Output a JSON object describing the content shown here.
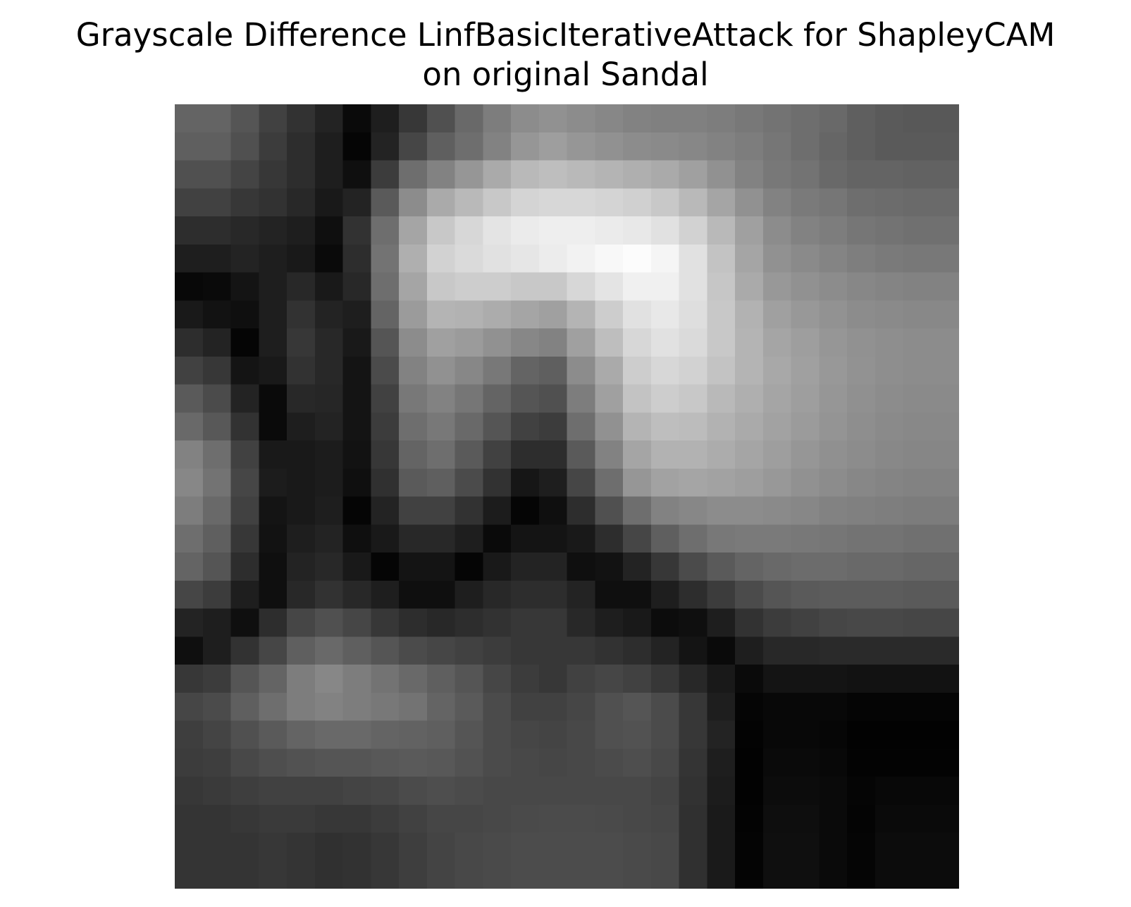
{
  "chart_data": {
    "type": "heatmap",
    "title_lines": [
      "Grayscale Difference LinfBasicIterativeAttack for ShapleyCAM",
      "on original Sandal"
    ],
    "colormap": "gray",
    "axis_visible": false,
    "grid": false,
    "rows": 28,
    "cols": 28,
    "values": [
      [
        100,
        100,
        85,
        65,
        50,
        35,
        10,
        30,
        55,
        80,
        105,
        125,
        140,
        145,
        140,
        135,
        130,
        128,
        128,
        125,
        120,
        115,
        110,
        105,
        95,
        90,
        88,
        88
      ],
      [
        95,
        95,
        80,
        60,
        45,
        30,
        5,
        35,
        70,
        95,
        110,
        130,
        150,
        158,
        150,
        145,
        140,
        138,
        135,
        130,
        125,
        118,
        110,
        102,
        95,
        90,
        90,
        90
      ],
      [
        80,
        80,
        68,
        55,
        45,
        30,
        15,
        60,
        110,
        130,
        150,
        170,
        185,
        190,
        185,
        180,
        175,
        170,
        160,
        145,
        130,
        120,
        115,
        105,
        100,
        100,
        98,
        98
      ],
      [
        65,
        65,
        55,
        50,
        40,
        25,
        35,
        90,
        140,
        170,
        185,
        200,
        212,
        215,
        215,
        212,
        208,
        200,
        185,
        165,
        145,
        130,
        122,
        118,
        110,
        108,
        106,
        106
      ],
      [
        45,
        45,
        40,
        35,
        30,
        15,
        50,
        110,
        165,
        200,
        215,
        228,
        235,
        238,
        238,
        235,
        232,
        225,
        210,
        185,
        160,
        140,
        130,
        125,
        118,
        115,
        112,
        112
      ],
      [
        30,
        30,
        35,
        30,
        25,
        10,
        45,
        115,
        175,
        210,
        218,
        225,
        230,
        236,
        242,
        248,
        252,
        245,
        225,
        195,
        165,
        145,
        138,
        132,
        126,
        122,
        120,
        120
      ],
      [
        8,
        10,
        20,
        30,
        40,
        25,
        40,
        110,
        165,
        200,
        205,
        205,
        200,
        200,
        215,
        228,
        240,
        240,
        225,
        198,
        170,
        152,
        145,
        140,
        135,
        132,
        130,
        130
      ],
      [
        25,
        18,
        15,
        30,
        50,
        35,
        30,
        100,
        155,
        180,
        178,
        172,
        165,
        160,
        180,
        205,
        225,
        232,
        222,
        200,
        178,
        160,
        152,
        146,
        140,
        138,
        136,
        136
      ],
      [
        45,
        35,
        5,
        30,
        55,
        40,
        25,
        85,
        140,
        160,
        155,
        145,
        135,
        130,
        160,
        190,
        215,
        225,
        218,
        200,
        180,
        165,
        158,
        150,
        145,
        142,
        140,
        140
      ],
      [
        65,
        55,
        20,
        25,
        50,
        40,
        20,
        75,
        130,
        145,
        135,
        120,
        100,
        95,
        140,
        170,
        205,
        215,
        210,
        195,
        180,
        168,
        160,
        152,
        146,
        142,
        140,
        140
      ],
      [
        90,
        75,
        35,
        10,
        40,
        38,
        20,
        65,
        120,
        130,
        118,
        100,
        85,
        80,
        125,
        160,
        195,
        205,
        200,
        185,
        175,
        165,
        158,
        150,
        144,
        140,
        138,
        138
      ],
      [
        105,
        88,
        50,
        10,
        30,
        35,
        20,
        60,
        110,
        120,
        105,
        85,
        65,
        60,
        110,
        145,
        180,
        190,
        188,
        178,
        170,
        162,
        155,
        148,
        142,
        138,
        136,
        136
      ],
      [
        130,
        110,
        65,
        25,
        25,
        28,
        18,
        55,
        100,
        110,
        90,
        65,
        45,
        45,
        90,
        130,
        165,
        178,
        178,
        172,
        165,
        158,
        150,
        144,
        140,
        136,
        134,
        134
      ],
      [
        135,
        115,
        70,
        28,
        25,
        28,
        15,
        48,
        90,
        95,
        75,
        50,
        22,
        30,
        70,
        110,
        150,
        162,
        165,
        162,
        158,
        152,
        145,
        140,
        135,
        132,
        130,
        130
      ],
      [
        125,
        105,
        65,
        20,
        25,
        30,
        5,
        35,
        65,
        65,
        50,
        28,
        5,
        15,
        45,
        80,
        110,
        130,
        135,
        140,
        140,
        138,
        135,
        130,
        128,
        126,
        124,
        124
      ],
      [
        110,
        95,
        55,
        18,
        30,
        35,
        15,
        25,
        40,
        40,
        30,
        10,
        20,
        20,
        25,
        45,
        70,
        95,
        110,
        120,
        122,
        122,
        120,
        118,
        115,
        115,
        112,
        112
      ],
      [
        100,
        85,
        45,
        15,
        35,
        40,
        25,
        5,
        20,
        20,
        5,
        25,
        35,
        35,
        15,
        18,
        35,
        55,
        75,
        90,
        100,
        105,
        108,
        108,
        105,
        105,
        102,
        102
      ],
      [
        70,
        60,
        30,
        15,
        40,
        50,
        40,
        30,
        15,
        15,
        30,
        40,
        45,
        45,
        35,
        15,
        15,
        30,
        45,
        60,
        75,
        85,
        90,
        92,
        92,
        92,
        90,
        90
      ],
      [
        35,
        30,
        15,
        45,
        70,
        80,
        70,
        55,
        45,
        40,
        45,
        50,
        55,
        55,
        40,
        30,
        25,
        12,
        15,
        30,
        50,
        60,
        65,
        70,
        72,
        72,
        70,
        70
      ],
      [
        15,
        30,
        50,
        70,
        95,
        105,
        95,
        85,
        75,
        70,
        65,
        60,
        55,
        55,
        55,
        50,
        45,
        35,
        20,
        10,
        30,
        40,
        40,
        42,
        42,
        42,
        42,
        42
      ],
      [
        55,
        60,
        85,
        100,
        125,
        135,
        125,
        115,
        105,
        95,
        85,
        70,
        60,
        55,
        65,
        70,
        65,
        55,
        40,
        25,
        10,
        20,
        20,
        20,
        18,
        18,
        18,
        18
      ],
      [
        70,
        75,
        95,
        110,
        125,
        130,
        125,
        120,
        115,
        100,
        90,
        75,
        65,
        65,
        70,
        80,
        85,
        75,
        55,
        30,
        5,
        8,
        8,
        8,
        5,
        5,
        5,
        5
      ],
      [
        62,
        68,
        80,
        90,
        100,
        105,
        105,
        100,
        98,
        95,
        85,
        75,
        70,
        68,
        72,
        80,
        82,
        75,
        55,
        35,
        3,
        8,
        8,
        6,
        2,
        2,
        2,
        2
      ],
      [
        60,
        62,
        72,
        78,
        82,
        85,
        85,
        88,
        90,
        88,
        82,
        75,
        72,
        70,
        72,
        75,
        78,
        72,
        52,
        30,
        2,
        10,
        10,
        8,
        3,
        3,
        3,
        3
      ],
      [
        55,
        58,
        62,
        65,
        65,
        65,
        68,
        70,
        75,
        78,
        75,
        72,
        72,
        72,
        72,
        72,
        72,
        68,
        50,
        28,
        2,
        12,
        12,
        10,
        5,
        8,
        8,
        8
      ],
      [
        52,
        52,
        55,
        58,
        58,
        55,
        55,
        60,
        65,
        70,
        70,
        72,
        74,
        75,
        75,
        74,
        72,
        70,
        48,
        26,
        3,
        14,
        14,
        10,
        4,
        10,
        10,
        10
      ],
      [
        52,
        52,
        52,
        55,
        52,
        48,
        50,
        55,
        62,
        68,
        72,
        74,
        76,
        76,
        76,
        76,
        74,
        72,
        48,
        26,
        4,
        15,
        15,
        10,
        5,
        12,
        12,
        12
      ],
      [
        52,
        52,
        52,
        55,
        52,
        48,
        50,
        55,
        62,
        68,
        72,
        74,
        76,
        76,
        76,
        76,
        74,
        72,
        48,
        26,
        4,
        15,
        15,
        10,
        5,
        12,
        12,
        12
      ]
    ]
  }
}
